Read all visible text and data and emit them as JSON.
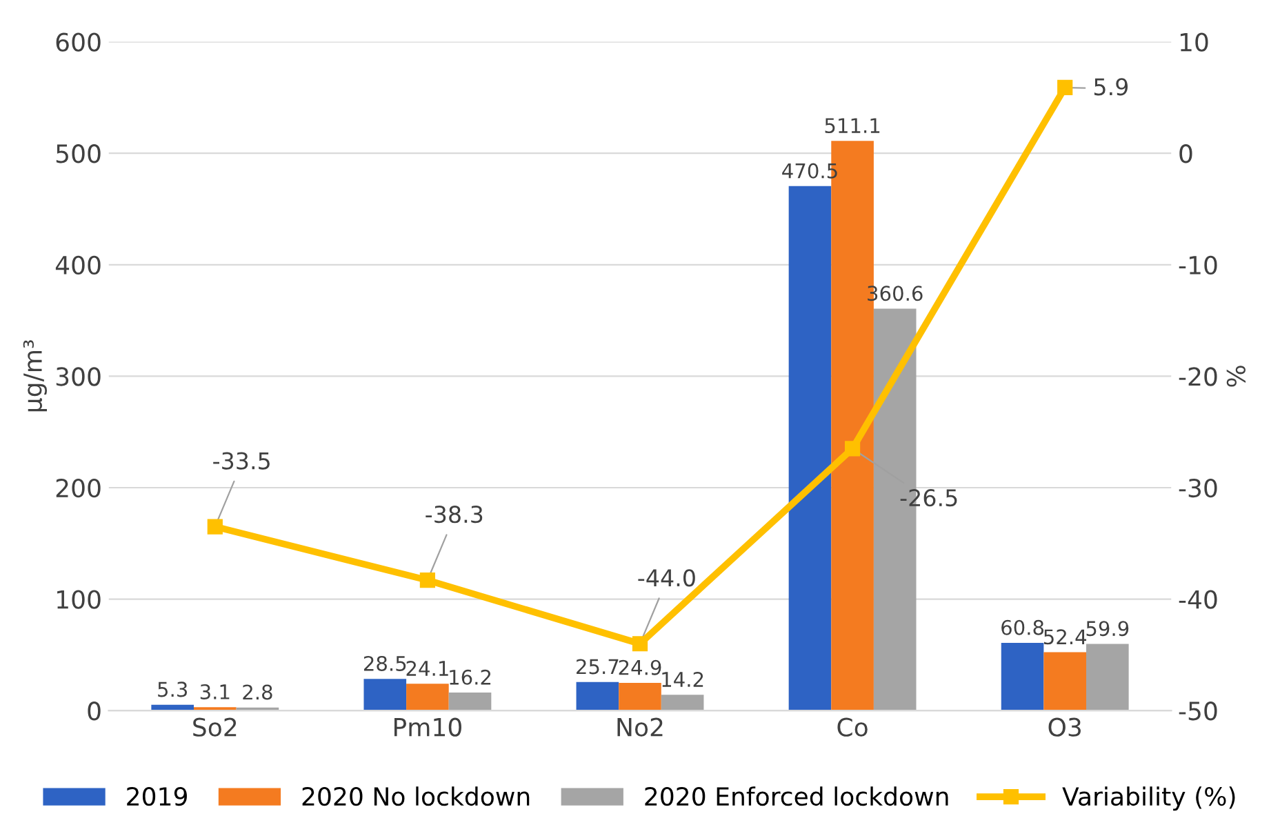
{
  "chart_data": {
    "type": "bar",
    "ylabel": "µg/m³",
    "y2label": "%",
    "categories": [
      "So2",
      "Pm10",
      "No2",
      "Co",
      "O3"
    ],
    "series": [
      {
        "name": "2019",
        "color": "#2e63c4",
        "values": [
          5.3,
          28.5,
          25.7,
          470.5,
          60.8
        ],
        "value_labels": [
          "5.3",
          "28.5",
          "25.7",
          "470.5",
          "60.8"
        ]
      },
      {
        "name": "2020 No lockdown",
        "color": "#f47b20",
        "values": [
          3.1,
          24.1,
          24.9,
          511.1,
          52.4
        ],
        "value_labels": [
          "3.1",
          "24.1",
          "24.9",
          "511.1",
          "52.4"
        ]
      },
      {
        "name": "2020 Enforced lockdown",
        "color": "#a5a5a5",
        "values": [
          2.8,
          16.2,
          14.2,
          360.6,
          59.9
        ],
        "value_labels": [
          "2.8",
          "16.2",
          "14.2",
          "360.6",
          "59.9"
        ]
      },
      {
        "name": "Variability (%)",
        "type": "line",
        "axis": "y2",
        "color": "#ffc000",
        "marker": "square",
        "values": [
          -33.5,
          -38.3,
          -44.0,
          -26.5,
          5.9
        ],
        "value_labels": [
          "-33.5",
          "-38.3",
          "-44.0",
          "-26.5",
          "5.9"
        ]
      }
    ],
    "ylim": [
      0,
      600
    ],
    "yticks": [
      0,
      100,
      200,
      300,
      400,
      500,
      600
    ],
    "y2lim": [
      -50,
      10
    ],
    "y2ticks": [
      -50,
      -40,
      -30,
      -20,
      -10,
      0,
      10
    ],
    "grid": "y",
    "legend": "bottom"
  }
}
